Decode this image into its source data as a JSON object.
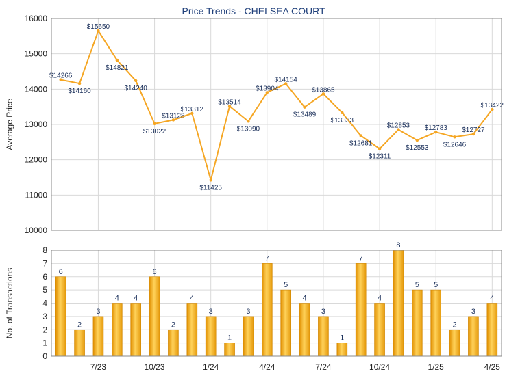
{
  "chart_data": [
    {
      "type": "line",
      "title": "Price Trends - CHELSEA COURT",
      "ylabel": "Average Price",
      "ylim": [
        10000,
        16000
      ],
      "yticks": [
        10000,
        11000,
        12000,
        13000,
        14000,
        15000,
        16000
      ],
      "grid": true,
      "color": "#f5a623",
      "series": [
        {
          "values": [
            14266,
            14160,
            15650,
            14821,
            14240,
            13022,
            13128,
            13312,
            11425,
            13514,
            13090,
            13904,
            14154,
            13489,
            13865,
            13333,
            12681,
            12311,
            12853,
            12553,
            12783,
            12646,
            12727,
            13422
          ],
          "labels": [
            "$14266",
            "$14160",
            "$15650",
            "$14821",
            "$14240",
            "$13022",
            "$13128",
            "$13312",
            "$11425",
            "$13514",
            "$13090",
            "$13904",
            "$14154",
            "$13489",
            "$13865",
            "$13333",
            "$12681",
            "$12311",
            "$12853",
            "$12553",
            "$12783",
            "$12646",
            "$12727",
            "$13422"
          ]
        }
      ]
    },
    {
      "type": "bar",
      "ylabel": "No. of Transactions",
      "ylim": [
        0,
        8
      ],
      "yticks": [
        0,
        1,
        2,
        3,
        4,
        5,
        6,
        7,
        8
      ],
      "xticks": [
        "7/23",
        "10/23",
        "1/24",
        "4/24",
        "7/24",
        "10/24",
        "1/25",
        "4/25"
      ],
      "grid": true,
      "color": "#f5a623",
      "values": [
        6,
        2,
        3,
        4,
        4,
        6,
        2,
        4,
        3,
        1,
        3,
        7,
        5,
        4,
        3,
        1,
        7,
        4,
        8,
        5,
        5,
        2,
        3,
        4
      ]
    }
  ]
}
